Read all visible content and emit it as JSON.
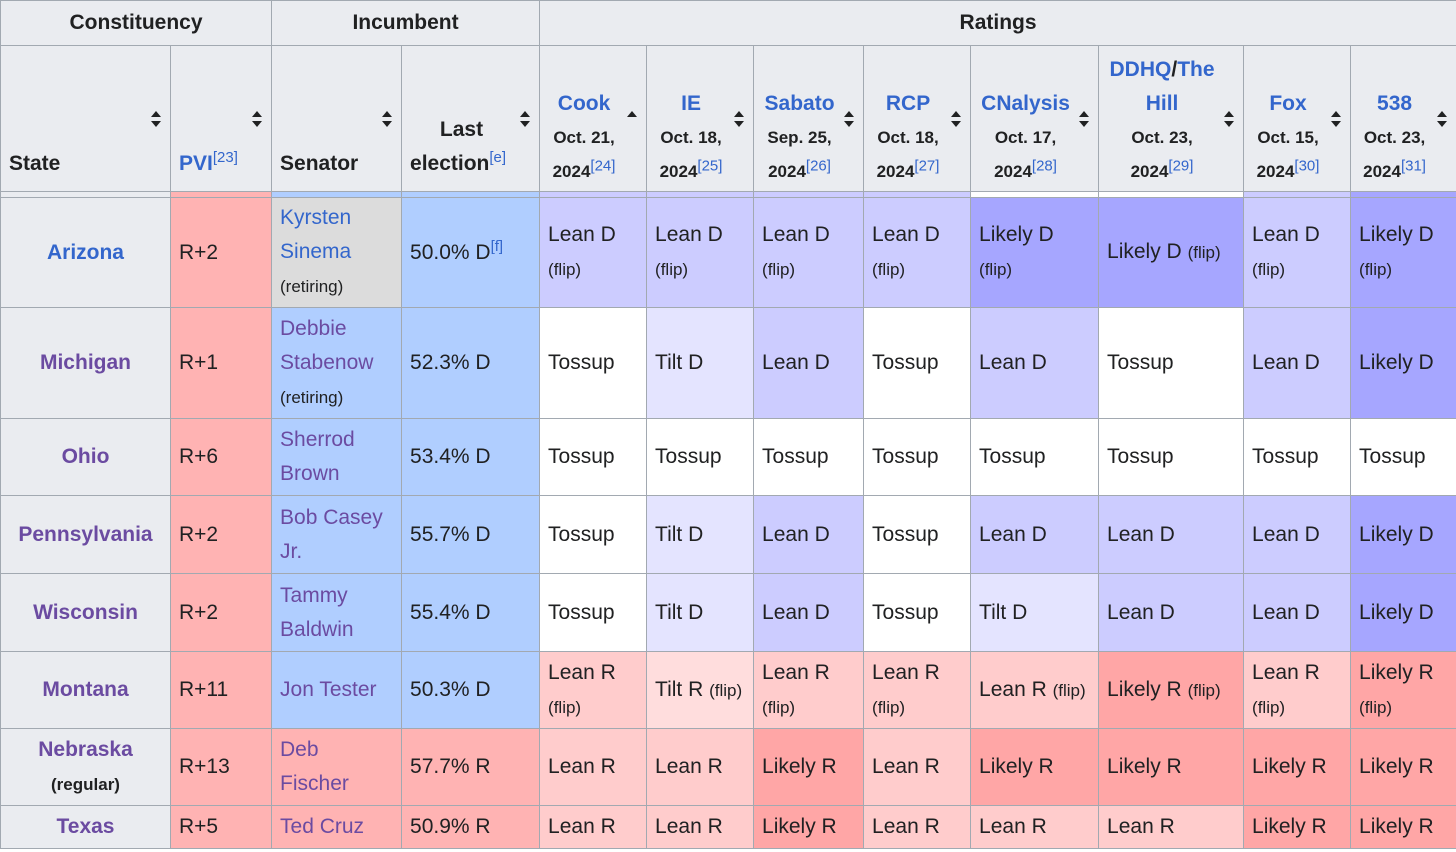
{
  "groups": {
    "constituency": "Constituency",
    "incumbent": "Incumbent",
    "ratings": "Ratings"
  },
  "columns": {
    "state": "State",
    "pvi": "PVI",
    "pvi_ref": "[23]",
    "senator": "Senator",
    "last_election": "Last election",
    "last_election_line1": "Last",
    "last_election_line2": "election",
    "last_election_ref": "[e]"
  },
  "sources": [
    {
      "name": "Cook",
      "date": "Oct. 21, 2024",
      "ref": "[24]"
    },
    {
      "name": "IE",
      "date": "Oct. 18, 2024",
      "ref": "[25]"
    },
    {
      "name": "Sabato",
      "date": "Sep. 25, 2024",
      "ref": "[26]"
    },
    {
      "name": "RCP",
      "date": "Oct. 18, 2024",
      "ref": "[27]"
    },
    {
      "name": "CNalysis",
      "date": "Oct. 17, 2024",
      "ref": "[28]"
    },
    {
      "name": "DDHQ/The Hill",
      "name_part1": "DDHQ",
      "name_sep": "/",
      "name_part2": "The Hill",
      "date": "Oct. 23, 2024",
      "ref": "[29]"
    },
    {
      "name": "Fox",
      "date": "Oct. 15, 2024",
      "ref": "[30]"
    },
    {
      "name": "538",
      "date": "Oct. 23, 2024",
      "ref": "[31]"
    }
  ],
  "rows": [
    {
      "state": "Arizona",
      "state_sub": "",
      "pvi": "R+2",
      "senator": "Kyrsten Sinema",
      "senator_note": "(retiring)",
      "last": "50.0% D",
      "last_ref": "[f]",
      "ratings": [
        {
          "text": "Lean D",
          "note": "(flip)"
        },
        {
          "text": "Lean D",
          "note": "(flip)"
        },
        {
          "text": "Lean D",
          "note": "(flip)"
        },
        {
          "text": "Lean D",
          "note": "(flip)"
        },
        {
          "text": "Likely D",
          "note": "(flip)"
        },
        {
          "text": "Likely D",
          "note": "(flip)"
        },
        {
          "text": "Lean D",
          "note": "(flip)"
        },
        {
          "text": "Likely D",
          "note": "(flip)"
        }
      ]
    },
    {
      "state": "Michigan",
      "state_sub": "",
      "pvi": "R+1",
      "senator": "Debbie Stabenow",
      "senator_note": "(retiring)",
      "last": "52.3% D",
      "last_ref": "",
      "ratings": [
        {
          "text": "Tossup",
          "note": ""
        },
        {
          "text": "Tilt D",
          "note": ""
        },
        {
          "text": "Lean D",
          "note": ""
        },
        {
          "text": "Tossup",
          "note": ""
        },
        {
          "text": "Lean D",
          "note": ""
        },
        {
          "text": "Tossup",
          "note": ""
        },
        {
          "text": "Lean D",
          "note": ""
        },
        {
          "text": "Likely D",
          "note": ""
        }
      ]
    },
    {
      "state": "Ohio",
      "state_sub": "",
      "pvi": "R+6",
      "senator": "Sherrod Brown",
      "senator_note": "",
      "last": "53.4% D",
      "last_ref": "",
      "ratings": [
        {
          "text": "Tossup",
          "note": ""
        },
        {
          "text": "Tossup",
          "note": ""
        },
        {
          "text": "Tossup",
          "note": ""
        },
        {
          "text": "Tossup",
          "note": ""
        },
        {
          "text": "Tossup",
          "note": ""
        },
        {
          "text": "Tossup",
          "note": ""
        },
        {
          "text": "Tossup",
          "note": ""
        },
        {
          "text": "Tossup",
          "note": ""
        }
      ]
    },
    {
      "state": "Pennsylvania",
      "state_sub": "",
      "pvi": "R+2",
      "senator": "Bob Casey Jr.",
      "senator_note": "",
      "last": "55.7% D",
      "last_ref": "",
      "ratings": [
        {
          "text": "Tossup",
          "note": ""
        },
        {
          "text": "Tilt D",
          "note": ""
        },
        {
          "text": "Lean D",
          "note": ""
        },
        {
          "text": "Tossup",
          "note": ""
        },
        {
          "text": "Lean D",
          "note": ""
        },
        {
          "text": "Lean D",
          "note": ""
        },
        {
          "text": "Lean D",
          "note": ""
        },
        {
          "text": "Likely D",
          "note": ""
        }
      ]
    },
    {
      "state": "Wisconsin",
      "state_sub": "",
      "pvi": "R+2",
      "senator": "Tammy Baldwin",
      "senator_note": "",
      "last": "55.4% D",
      "last_ref": "",
      "ratings": [
        {
          "text": "Tossup",
          "note": ""
        },
        {
          "text": "Tilt D",
          "note": ""
        },
        {
          "text": "Lean D",
          "note": ""
        },
        {
          "text": "Tossup",
          "note": ""
        },
        {
          "text": "Tilt D",
          "note": ""
        },
        {
          "text": "Lean D",
          "note": ""
        },
        {
          "text": "Lean D",
          "note": ""
        },
        {
          "text": "Likely D",
          "note": ""
        }
      ]
    },
    {
      "state": "Montana",
      "state_sub": "",
      "pvi": "R+11",
      "senator": "Jon Tester",
      "senator_note": "",
      "last": "50.3% D",
      "last_ref": "",
      "ratings": [
        {
          "text": "Lean R",
          "note": "(flip)"
        },
        {
          "text": "Tilt R",
          "note": "(flip)"
        },
        {
          "text": "Lean R",
          "note": "(flip)"
        },
        {
          "text": "Lean R",
          "note": "(flip)"
        },
        {
          "text": "Lean R",
          "note": "(flip)"
        },
        {
          "text": "Likely R",
          "note": "(flip)"
        },
        {
          "text": "Lean R",
          "note": "(flip)"
        },
        {
          "text": "Likely R",
          "note": "(flip)"
        }
      ]
    },
    {
      "state": "Nebraska",
      "state_sub": "(regular)",
      "pvi": "R+13",
      "senator": "Deb Fischer",
      "senator_note": "",
      "last": "57.7% R",
      "last_ref": "",
      "ratings": [
        {
          "text": "Lean R",
          "note": ""
        },
        {
          "text": "Lean R",
          "note": ""
        },
        {
          "text": "Likely R",
          "note": ""
        },
        {
          "text": "Lean R",
          "note": ""
        },
        {
          "text": "Likely R",
          "note": ""
        },
        {
          "text": "Likely R",
          "note": ""
        },
        {
          "text": "Likely R",
          "note": ""
        },
        {
          "text": "Likely R",
          "note": ""
        }
      ]
    },
    {
      "state": "Texas",
      "state_sub": "",
      "pvi": "R+5",
      "senator": "Ted Cruz",
      "senator_note": "",
      "last": "50.9% R",
      "last_ref": "",
      "ratings": [
        {
          "text": "Lean R",
          "note": ""
        },
        {
          "text": "Lean R",
          "note": ""
        },
        {
          "text": "Likely R",
          "note": ""
        },
        {
          "text": "Lean R",
          "note": ""
        },
        {
          "text": "Lean R",
          "note": ""
        },
        {
          "text": "Lean R",
          "note": ""
        },
        {
          "text": "Likely R",
          "note": ""
        },
        {
          "text": "Likely R",
          "note": ""
        }
      ]
    }
  ]
}
